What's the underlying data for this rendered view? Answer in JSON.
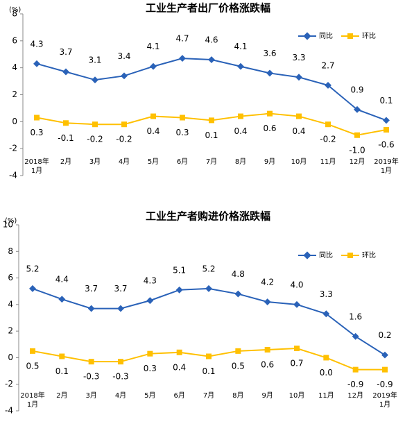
{
  "chart_data": [
    {
      "type": "line",
      "title": "工业生产者出厂价格涨跌幅",
      "unit": "(%)",
      "categories": [
        "2018年1月",
        "2月",
        "3月",
        "4月",
        "5月",
        "6月",
        "7月",
        "8月",
        "9月",
        "10月",
        "11月",
        "12月",
        "2019年1月"
      ],
      "series": [
        {
          "name": "同比",
          "color": "#2a62b8",
          "values": [
            4.3,
            3.7,
            3.1,
            3.4,
            4.1,
            4.7,
            4.6,
            4.1,
            3.6,
            3.3,
            2.7,
            0.9,
            0.1
          ]
        },
        {
          "name": "环比",
          "color": "#ffc000",
          "values": [
            0.3,
            -0.1,
            -0.2,
            -0.2,
            0.4,
            0.3,
            0.1,
            0.4,
            0.6,
            0.4,
            -0.2,
            -1.0,
            -0.6
          ],
          "value_labels": [
            "0.3",
            "-0.1",
            "-0.2",
            "-0.2",
            "0.4",
            "0.3",
            "0.1",
            "0.4",
            "0.6",
            "0.4",
            "-0.2",
            "-1.0",
            "-0.6"
          ]
        }
      ],
      "ylim": [
        -4,
        8
      ],
      "yticks": [
        -4,
        -2,
        0,
        2,
        4,
        6,
        8
      ],
      "grid": false,
      "legend": "upper right"
    },
    {
      "type": "line",
      "title": "工业生产者购进价格涨跌幅",
      "unit": "(%)",
      "categories": [
        "2018年1月",
        "2月",
        "3月",
        "4月",
        "5月",
        "6月",
        "7月",
        "8月",
        "9月",
        "10月",
        "11月",
        "12月",
        "2019年1月"
      ],
      "series": [
        {
          "name": "同比",
          "color": "#2a62b8",
          "values": [
            5.2,
            4.4,
            3.7,
            3.7,
            4.3,
            5.1,
            5.2,
            4.8,
            4.2,
            4.0,
            3.3,
            1.6,
            0.2
          ],
          "value_labels": [
            "5.2",
            "4.4",
            "3.7",
            "3.7",
            "4.3",
            "5.1",
            "5.2",
            "4.8",
            "4.2",
            "4.0",
            "3.3",
            "1.6",
            "0.2"
          ]
        },
        {
          "name": "环比",
          "color": "#ffc000",
          "values": [
            0.5,
            0.1,
            -0.3,
            -0.3,
            0.3,
            0.4,
            0.1,
            0.5,
            0.6,
            0.7,
            0.0,
            -0.9,
            -0.9
          ],
          "value_labels": [
            "0.5",
            "0.1",
            "-0.3",
            "-0.3",
            "0.3",
            "0.4",
            "0.1",
            "0.5",
            "0.6",
            "0.7",
            "0.0",
            "-0.9",
            "-0.9"
          ]
        }
      ],
      "ylim": [
        -4,
        10
      ],
      "yticks": [
        -4,
        -2,
        0,
        2,
        4,
        6,
        8,
        10
      ],
      "grid": false,
      "legend": "upper right"
    }
  ]
}
